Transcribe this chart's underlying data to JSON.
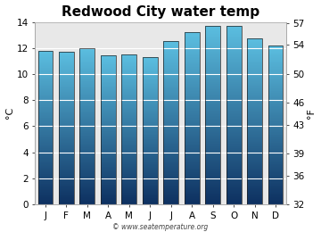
{
  "title": "Redwood City water temp",
  "months": [
    "J",
    "F",
    "M",
    "A",
    "M",
    "J",
    "J",
    "A",
    "S",
    "O",
    "N",
    "D"
  ],
  "values_c": [
    11.8,
    11.7,
    12.0,
    11.4,
    11.5,
    11.3,
    12.5,
    13.2,
    13.7,
    13.7,
    12.7,
    12.2
  ],
  "ylim_c": [
    0,
    14
  ],
  "yticks_c": [
    0,
    2,
    4,
    6,
    8,
    10,
    12,
    14
  ],
  "yticks_f": [
    32,
    36,
    39,
    43,
    46,
    50,
    54,
    57
  ],
  "ylabel_left": "°C",
  "ylabel_right": "°F",
  "watermark": "© www.seatemperature.org",
  "bar_color_top": "#5bbee0",
  "bar_color_bottom": "#0d3060",
  "bar_edge_color": "#222222",
  "figure_bg": "#ffffff",
  "plot_bg": "#e8e8e8",
  "grid_color": "#ffffff",
  "title_fontsize": 11,
  "label_fontsize": 8,
  "tick_fontsize": 7.5,
  "watermark_fontsize": 5.5,
  "bar_width": 0.72
}
